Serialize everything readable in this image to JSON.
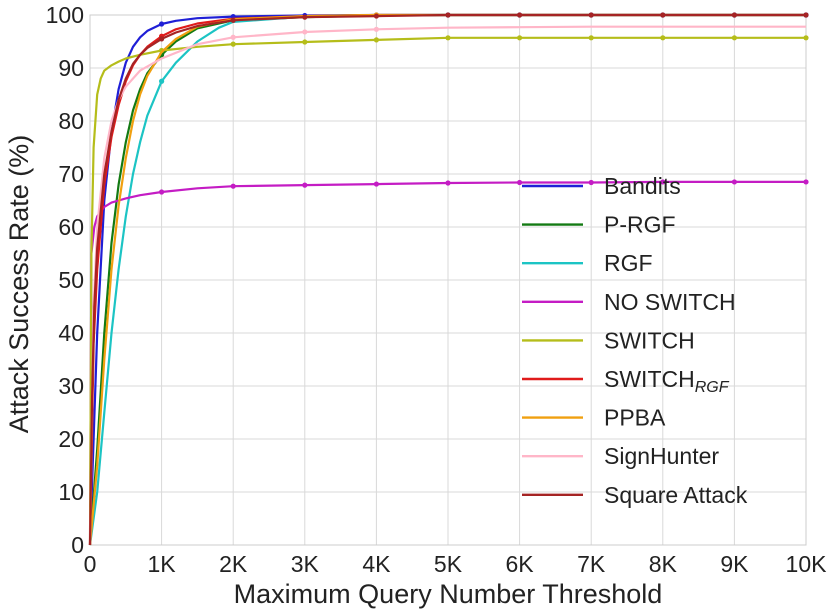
{
  "chart_data": {
    "type": "line",
    "title": "",
    "xlabel": "Maximum Query Number Threshold",
    "ylabel": "Attack Success Rate (%)",
    "xlim": [
      0,
      10000
    ],
    "ylim": [
      0,
      100
    ],
    "x_ticks": [
      {
        "value": 0,
        "label": "0"
      },
      {
        "value": 1000,
        "label": "1K"
      },
      {
        "value": 2000,
        "label": "2K"
      },
      {
        "value": 3000,
        "label": "3K"
      },
      {
        "value": 4000,
        "label": "4K"
      },
      {
        "value": 5000,
        "label": "5K"
      },
      {
        "value": 6000,
        "label": "6K"
      },
      {
        "value": 7000,
        "label": "7K"
      },
      {
        "value": 8000,
        "label": "8K"
      },
      {
        "value": 9000,
        "label": "9K"
      },
      {
        "value": 10000,
        "label": "10K"
      }
    ],
    "y_ticks": [
      {
        "value": 0,
        "label": "0"
      },
      {
        "value": 10,
        "label": "10"
      },
      {
        "value": 20,
        "label": "20"
      },
      {
        "value": 30,
        "label": "30"
      },
      {
        "value": 40,
        "label": "40"
      },
      {
        "value": 50,
        "label": "50"
      },
      {
        "value": 60,
        "label": "60"
      },
      {
        "value": 70,
        "label": "70"
      },
      {
        "value": 80,
        "label": "80"
      },
      {
        "value": 90,
        "label": "90"
      },
      {
        "value": 100,
        "label": "100"
      }
    ],
    "grid": true,
    "legend_position": "center-right",
    "series": [
      {
        "name": "Bandits",
        "label_main": "Bandits",
        "label_sub": "",
        "color": "#1f1fd6",
        "x": [
          0,
          100,
          200,
          300,
          400,
          500,
          600,
          700,
          800,
          1000,
          1200,
          1500,
          2000,
          3000,
          4000,
          5000,
          6000,
          7000,
          8000,
          9000,
          10000
        ],
        "y": [
          0,
          40,
          65,
          78,
          86,
          91,
          94,
          95.8,
          97,
          98.3,
          98.9,
          99.4,
          99.7,
          99.9,
          100,
          100,
          100,
          100,
          100,
          100,
          100
        ],
        "markers": [
          1000,
          2000,
          3000,
          4000,
          5000,
          6000,
          7000,
          8000,
          9000,
          10000
        ]
      },
      {
        "name": "P-RGF",
        "label_main": "P-RGF",
        "label_sub": "",
        "color": "#137a13",
        "x": [
          0,
          100,
          200,
          300,
          400,
          500,
          600,
          700,
          800,
          1000,
          1200,
          1500,
          2000,
          3000,
          4000,
          5000,
          6000,
          7000,
          8000,
          9000,
          10000
        ],
        "y": [
          0,
          18,
          40,
          57,
          68,
          76,
          82,
          86,
          89,
          92.5,
          95,
          97.5,
          99,
          99.6,
          99.9,
          100,
          100,
          100,
          100,
          100,
          100
        ],
        "markers": [
          1000
        ]
      },
      {
        "name": "RGF",
        "label_main": "RGF",
        "label_sub": "",
        "color": "#1cc4c4",
        "x": [
          0,
          100,
          200,
          300,
          400,
          500,
          600,
          700,
          800,
          1000,
          1200,
          1500,
          1800,
          2000,
          3000,
          4000,
          5000,
          6000,
          7000,
          8000,
          9000,
          10000
        ],
        "y": [
          0,
          10,
          25,
          40,
          52,
          62,
          70,
          76,
          81,
          87.5,
          91,
          95,
          97.6,
          98.7,
          99.7,
          100,
          100,
          100,
          100,
          100,
          100,
          100
        ],
        "markers": [
          1000
        ]
      },
      {
        "name": "NO SWITCH",
        "label_main": "NO SWITCH",
        "label_sub": "",
        "color": "#c41cc4",
        "x": [
          0,
          20,
          60,
          100,
          200,
          300,
          400,
          500,
          700,
          1000,
          1500,
          2000,
          3000,
          4000,
          5000,
          6000,
          7000,
          8000,
          9000,
          10000
        ],
        "y": [
          0,
          55,
          60,
          62,
          63.8,
          64.6,
          65,
          65.4,
          66,
          66.6,
          67.3,
          67.7,
          67.9,
          68.1,
          68.3,
          68.4,
          68.4,
          68.5,
          68.5,
          68.5
        ],
        "markers": [
          1000,
          2000,
          3000,
          4000,
          5000,
          6000,
          7000,
          8000,
          9000,
          10000
        ]
      },
      {
        "name": "SWITCH",
        "label_main": "SWITCH",
        "label_sub": "",
        "color": "#b5bd1a",
        "x": [
          0,
          20,
          50,
          100,
          150,
          200,
          300,
          400,
          500,
          700,
          1000,
          1500,
          2000,
          3000,
          4000,
          5000,
          6000,
          7000,
          8000,
          9000,
          10000
        ],
        "y": [
          0,
          55,
          75,
          85,
          88,
          89.5,
          90.5,
          91.2,
          91.8,
          92.5,
          93.3,
          94,
          94.5,
          94.9,
          95.3,
          95.7,
          95.7,
          95.7,
          95.7,
          95.7,
          95.7
        ],
        "markers": [
          1000,
          2000,
          3000,
          4000,
          5000,
          6000,
          7000,
          8000,
          9000,
          10000
        ]
      },
      {
        "name": "SWITCH_RGF",
        "label_main": "SWITCH",
        "label_sub": "RGF",
        "color": "#e01b1b",
        "x": [
          0,
          50,
          100,
          200,
          300,
          400,
          500,
          600,
          700,
          800,
          1000,
          1200,
          1500,
          2000,
          3000,
          4000,
          5000,
          6000,
          7000,
          8000,
          9000,
          10000
        ],
        "y": [
          0,
          38,
          52,
          68,
          77,
          83,
          87.5,
          90.5,
          92.5,
          94,
          96,
          97.3,
          98.4,
          99.3,
          99.8,
          100,
          100,
          100,
          100,
          100,
          100,
          100
        ],
        "markers": [
          1000
        ]
      },
      {
        "name": "PPBA",
        "label_main": "PPBA",
        "label_sub": "",
        "color": "#f0a010",
        "x": [
          0,
          100,
          200,
          300,
          400,
          500,
          600,
          700,
          800,
          1000,
          1200,
          1500,
          2000,
          3000,
          4000,
          5000,
          6000,
          7000,
          8000,
          9000,
          10000
        ],
        "y": [
          0,
          15,
          35,
          52,
          64,
          73,
          80,
          85,
          88.5,
          93,
          95.5,
          97.8,
          99.2,
          99.8,
          100,
          100,
          100,
          100,
          100,
          100,
          100
        ],
        "markers": [
          4000
        ]
      },
      {
        "name": "SignHunter",
        "label_main": "SignHunter",
        "label_sub": "",
        "color": "#ffb6c8",
        "x": [
          0,
          50,
          100,
          200,
          300,
          400,
          500,
          700,
          1000,
          1500,
          2000,
          3000,
          4000,
          5000,
          6000,
          7000,
          8000,
          9000,
          10000
        ],
        "y": [
          0,
          45,
          60,
          73,
          80,
          84,
          86.5,
          89.5,
          91.8,
          94.5,
          95.8,
          96.8,
          97.3,
          97.6,
          97.7,
          97.8,
          97.8,
          97.8,
          97.8
        ],
        "markers": [
          2000,
          3000,
          4000
        ]
      },
      {
        "name": "Square Attack",
        "label_main": "Square Attack",
        "label_sub": "",
        "color": "#a52424",
        "x": [
          0,
          30,
          60,
          100,
          200,
          300,
          400,
          500,
          600,
          700,
          800,
          1000,
          1200,
          1500,
          2000,
          3000,
          4000,
          5000,
          6000,
          7000,
          8000,
          9000,
          10000
        ],
        "y": [
          0,
          28,
          45,
          56,
          70,
          78,
          84,
          88,
          90.8,
          92.5,
          93.8,
          95.5,
          96.7,
          97.9,
          99,
          99.6,
          99.8,
          100,
          100,
          100,
          100,
          100,
          100
        ],
        "markers": [
          1000,
          2000,
          3000,
          4000,
          5000,
          6000,
          7000,
          8000,
          9000,
          10000
        ]
      }
    ]
  }
}
